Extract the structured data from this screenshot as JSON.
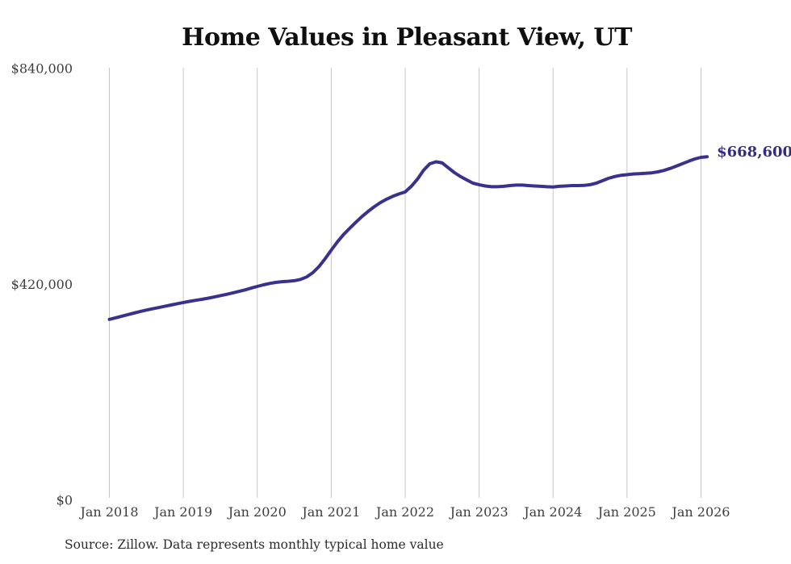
{
  "title": "Home Values in Pleasant View, UT",
  "source_note": "Source: Zillow. Data represents monthly typical home value",
  "colors": {
    "line": "#38328e",
    "end_label": "#322d7f",
    "grid": "#c6c6c6",
    "axis_text": "#3d3d3d",
    "title_text": "#0f0f0f",
    "source_text": "#2b2b2b",
    "background": "#ffffff"
  },
  "chart_data": {
    "type": "line",
    "title": "Home Values in Pleasant View, UT",
    "source": "Source: Zillow. Data represents monthly typical home value",
    "end_label": "$668,600",
    "final_value": 668600,
    "unit": "USD",
    "x_tick_labels": [
      "Jan 2018",
      "Jan 2019",
      "Jan 2020",
      "Jan 2021",
      "Jan 2022",
      "Jan 2023",
      "Jan 2024",
      "Jan 2025",
      "Jan 2026"
    ],
    "y_tick_labels": [
      "$0",
      "$420,000",
      "$840,000"
    ],
    "y_ticks": [
      0,
      420000,
      840000
    ],
    "ylim": [
      0,
      840000
    ],
    "grid": "vertical-only",
    "legend": "none",
    "series": [
      {
        "name": "Monthly typical home value",
        "start_month": "2018-01",
        "end_month": "2026-02",
        "values": [
          352000,
          355000,
          358100,
          361200,
          364300,
          367300,
          370100,
          372600,
          375000,
          377400,
          379900,
          382400,
          384900,
          387000,
          389000,
          391000,
          393100,
          395500,
          398100,
          400700,
          403400,
          406300,
          409400,
          412700,
          416100,
          419200,
          421900,
          424000,
          425400,
          426200,
          427200,
          429700,
          434500,
          442800,
          454600,
          469800,
          486800,
          502700,
          517000,
          529300,
          541000,
          552200,
          562300,
          571300,
          579300,
          586000,
          591500,
          596000,
          599900,
          610900,
          625000,
          642300,
          654800,
          658700,
          656400,
          647000,
          637500,
          629700,
          623400,
          617100,
          614000,
          611500,
          610200,
          610100,
          610900,
          612400,
          613200,
          613200,
          612400,
          611600,
          610900,
          610100,
          609700,
          610900,
          611600,
          612400,
          612400,
          612600,
          614000,
          617100,
          621800,
          626500,
          630000,
          632200,
          633500,
          634900,
          635500,
          636200,
          637200,
          639000,
          641900,
          645800,
          650100,
          655000,
          659700,
          664200,
          667300,
          668600
        ]
      }
    ]
  }
}
